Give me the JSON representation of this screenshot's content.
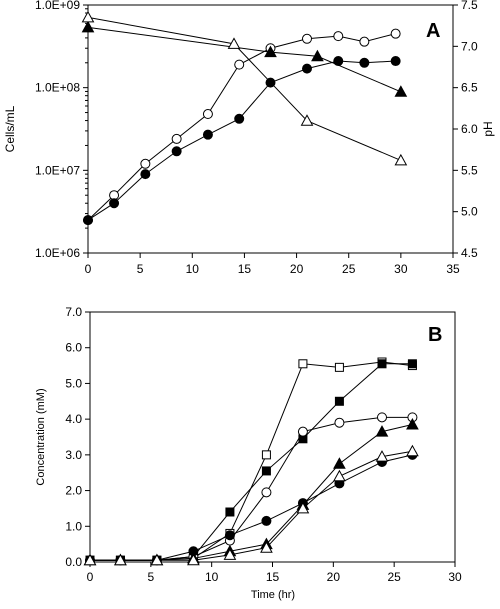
{
  "chart_data": [
    {
      "type": "scatter",
      "panel_label": "A",
      "xlabel": "",
      "ylabel": "Cells/mL",
      "y2label": "pH",
      "xlim": [
        0,
        35
      ],
      "ylim": [
        1000000,
        1000000000
      ],
      "y2lim": [
        4.5,
        7.5
      ],
      "y_scale": "log",
      "x_ticks": [
        "0",
        "5",
        "10",
        "15",
        "20",
        "25",
        "30",
        "35"
      ],
      "y_ticks": [
        "1.0E+06",
        "1.0E+07",
        "1.0E+08",
        "1.0E+09"
      ],
      "y2_ticks": [
        "4.5",
        "5.0",
        "5.5",
        "6.0",
        "6.5",
        "7.0",
        "7.5"
      ],
      "grid": false,
      "series": [
        {
          "marker": "circle-open",
          "axis": "left",
          "x": [
            0,
            2.5,
            5.5,
            8.5,
            11.5,
            14.5,
            17.5,
            21,
            24,
            26.5,
            29.5
          ],
          "y": [
            2500000,
            5000000,
            12000000,
            24000000,
            48000000,
            190000000,
            300000000,
            390000000,
            420000000,
            360000000,
            450000000
          ]
        },
        {
          "marker": "circle-filled",
          "axis": "left",
          "x": [
            0,
            2.5,
            5.5,
            8.5,
            11.5,
            14.5,
            17.5,
            21,
            24,
            26.5,
            29.5
          ],
          "y": [
            2500000,
            4000000,
            9000000,
            17000000,
            27000000,
            42000000,
            115000000,
            170000000,
            210000000,
            200000000,
            210000000
          ]
        },
        {
          "marker": "triangle-filled",
          "axis": "right",
          "x": [
            0,
            17.5,
            22,
            30
          ],
          "y": [
            7.23,
            6.93,
            6.88,
            6.45
          ]
        },
        {
          "marker": "triangle-open",
          "axis": "right",
          "x": [
            0,
            14,
            21,
            30
          ],
          "y": [
            7.35,
            7.03,
            6.1,
            5.62
          ]
        }
      ]
    },
    {
      "type": "scatter",
      "panel_label": "B",
      "xlabel": "Time (hr)",
      "ylabel": "Concentration (mM)",
      "xlim": [
        0,
        30
      ],
      "ylim": [
        0,
        7
      ],
      "x_ticks": [
        "0",
        "5",
        "10",
        "15",
        "20",
        "25",
        "30"
      ],
      "y_ticks": [
        "0.0",
        "1.0",
        "2.0",
        "3.0",
        "4.0",
        "5.0",
        "6.0",
        "7.0"
      ],
      "grid": false,
      "series": [
        {
          "marker": "square-open",
          "x": [
            0,
            2.5,
            5.5,
            8.5,
            11.5,
            14.5,
            17.5,
            20.5,
            24,
            26.5
          ],
          "y": [
            0.05,
            0.05,
            0.05,
            0.1,
            0.8,
            3.0,
            5.55,
            5.45,
            5.6,
            5.5
          ]
        },
        {
          "marker": "square-filled",
          "x": [
            0,
            2.5,
            5.5,
            8.5,
            11.5,
            14.5,
            17.5,
            20.5,
            24,
            26.5
          ],
          "y": [
            0.05,
            0.05,
            0.05,
            0.15,
            1.4,
            2.55,
            3.45,
            4.5,
            5.55,
            5.55
          ]
        },
        {
          "marker": "circle-open",
          "x": [
            0,
            2.5,
            5.5,
            8.5,
            11.5,
            14.5,
            17.5,
            20.5,
            24,
            26.5
          ],
          "y": [
            0.05,
            0.05,
            0.05,
            0.15,
            0.6,
            1.95,
            3.65,
            3.9,
            4.05,
            4.05
          ]
        },
        {
          "marker": "circle-filled",
          "x": [
            0,
            2.5,
            5.5,
            8.5,
            11.5,
            14.5,
            17.5,
            20.5,
            24,
            26.5
          ],
          "y": [
            0.05,
            0.05,
            0.05,
            0.3,
            0.75,
            1.15,
            1.65,
            2.2,
            2.8,
            3.0
          ]
        },
        {
          "marker": "triangle-filled",
          "x": [
            0,
            2.5,
            5.5,
            8.5,
            11.5,
            14.5,
            17.5,
            20.5,
            24,
            26.5
          ],
          "y": [
            0.05,
            0.05,
            0.05,
            0.1,
            0.3,
            0.5,
            1.6,
            2.75,
            3.65,
            3.85
          ]
        },
        {
          "marker": "triangle-open",
          "x": [
            0,
            2.5,
            5.5,
            8.5,
            11.5,
            14.5,
            17.5,
            20.5,
            24,
            26.5
          ],
          "y": [
            0.05,
            0.05,
            0.05,
            0.05,
            0.2,
            0.4,
            1.5,
            2.4,
            2.95,
            3.1
          ]
        }
      ]
    }
  ]
}
